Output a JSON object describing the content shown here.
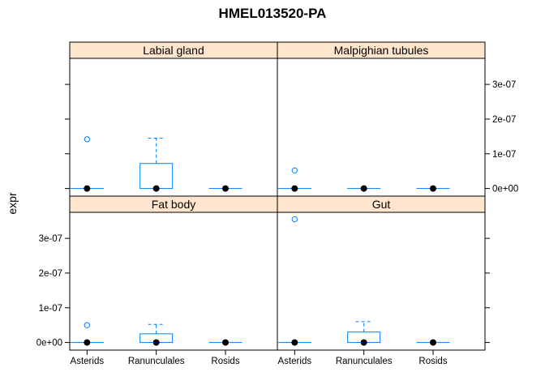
{
  "chart_data": {
    "type": "box",
    "title": "HMEL013520-PA",
    "ylabel": "expr",
    "xlabel": "",
    "categories": [
      "Asterids",
      "Ranunculales",
      "Rosids"
    ],
    "y_ticks": [
      "0e+00",
      "1e-07",
      "2e-07",
      "3e-07"
    ],
    "y_tick_values": [
      0,
      1e-07,
      2e-07,
      3e-07
    ],
    "ylim": [
      -2.2e-08,
      3.75e-07
    ],
    "colors": {
      "strip": "#ffe5cc",
      "box": "#0080ff",
      "median": "#000000",
      "frame": "#000000"
    },
    "panels": [
      {
        "name": "Labial gland",
        "row": "top",
        "col": "left",
        "boxes": [
          {
            "category": "Asterids",
            "q1": 0,
            "median": 0,
            "q3": 0,
            "whisker_high": 0,
            "outliers": [
              1.42e-07
            ]
          },
          {
            "category": "Ranunculales",
            "q1": 0,
            "median": 0,
            "q3": 7.2e-08,
            "whisker_high": 1.45e-07,
            "outliers": []
          },
          {
            "category": "Rosids",
            "q1": 0,
            "median": 0,
            "q3": 0,
            "whisker_high": 0,
            "outliers": []
          }
        ]
      },
      {
        "name": "Malpighian tubules",
        "row": "top",
        "col": "right",
        "boxes": [
          {
            "category": "Asterids",
            "q1": 0,
            "median": 0,
            "q3": 0,
            "whisker_high": 0,
            "outliers": [
              5.2e-08
            ]
          },
          {
            "category": "Ranunculales",
            "q1": 0,
            "median": 0,
            "q3": 0,
            "whisker_high": 0,
            "outliers": []
          },
          {
            "category": "Rosids",
            "q1": 0,
            "median": 0,
            "q3": 0,
            "whisker_high": 0,
            "outliers": []
          }
        ]
      },
      {
        "name": "Fat body",
        "row": "bottom",
        "col": "left",
        "boxes": [
          {
            "category": "Asterids",
            "q1": 0,
            "median": 0,
            "q3": 0,
            "whisker_high": 0,
            "outliers": [
              5e-08
            ]
          },
          {
            "category": "Ranunculales",
            "q1": 0,
            "median": 0,
            "q3": 2.5e-08,
            "whisker_high": 5.2e-08,
            "outliers": []
          },
          {
            "category": "Rosids",
            "q1": 0,
            "median": 0,
            "q3": 0,
            "whisker_high": 0,
            "outliers": []
          }
        ]
      },
      {
        "name": "Gut",
        "row": "bottom",
        "col": "right",
        "boxes": [
          {
            "category": "Asterids",
            "q1": 0,
            "median": 0,
            "q3": 0,
            "whisker_high": 0,
            "outliers": [
              3.55e-07
            ]
          },
          {
            "category": "Ranunculales",
            "q1": 0,
            "median": 0,
            "q3": 3e-08,
            "whisker_high": 6e-08,
            "outliers": []
          },
          {
            "category": "Rosids",
            "q1": 0,
            "median": 0,
            "q3": 0,
            "whisker_high": 0,
            "outliers": []
          }
        ]
      }
    ]
  }
}
